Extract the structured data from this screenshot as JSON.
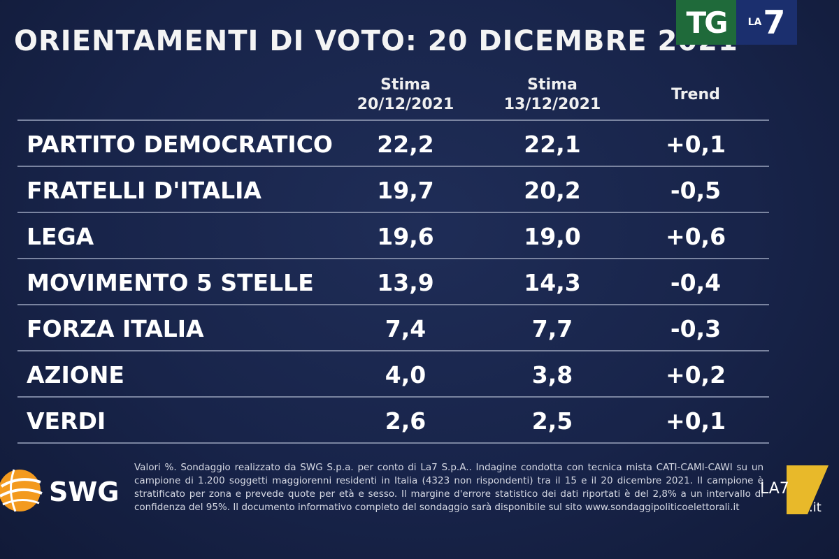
{
  "title": "ORIENTAMENTI DI VOTO: 20 DICEMBRE 2021",
  "logos": {
    "tg": "TG",
    "la": "LA",
    "seven": "7",
    "swg": "SWG",
    "la7_corner": "LA7",
    "la7_corner_suffix": ".it"
  },
  "columns": {
    "c1_line1": "Stima",
    "c1_line2": "20/12/2021",
    "c2_line1": "Stima",
    "c2_line2": "13/12/2021",
    "c3": "Trend"
  },
  "chart_data": {
    "type": "table",
    "title": "ORIENTAMENTI DI VOTO: 20 DICEMBRE 2021",
    "columns": [
      "Stima 20/12/2021",
      "Stima 13/12/2021",
      "Trend"
    ],
    "rows": [
      {
        "party": "PARTITO DEMOCRATICO",
        "stima_20": "22,2",
        "stima_13": "22,1",
        "trend": "+0,1"
      },
      {
        "party": "FRATELLI D'ITALIA",
        "stima_20": "19,7",
        "stima_13": "20,2",
        "trend": "-0,5"
      },
      {
        "party": "LEGA",
        "stima_20": "19,6",
        "stima_13": "19,0",
        "trend": "+0,6"
      },
      {
        "party": "MOVIMENTO 5 STELLE",
        "stima_20": "13,9",
        "stima_13": "14,3",
        "trend": "-0,4"
      },
      {
        "party": "FORZA ITALIA",
        "stima_20": "7,4",
        "stima_13": "7,7",
        "trend": "-0,3"
      },
      {
        "party": "AZIONE",
        "stima_20": "4,0",
        "stima_13": "3,8",
        "trend": "+0,2"
      },
      {
        "party": "VERDI",
        "stima_20": "2,6",
        "stima_13": "2,5",
        "trend": "+0,1"
      }
    ]
  },
  "footnote": "Valori %. Sondaggio realizzato da SWG S.p.a. per conto di La7 S.p.A.. Indagine condotta con tecnica mista CATI-CAMI-CAWI su un campione di 1.200 soggetti maggiorenni residenti in Italia (4323 non rispondenti) tra il 15 e il 20 dicembre 2021. Il campione è stratificato per zona e prevede quote per età e sesso. Il margine d'errore statistico dei dati riportati è del 2,8% a un intervallo di confidenza del 95%. Il documento informativo completo del sondaggio sarà disponibile sul sito www.sondaggipoliticoelettorali.it",
  "colors": {
    "background": "#18244a",
    "rule": "#7a84a0",
    "tg_green": "#1f6a3a",
    "la7_blue": "#1b2f6e",
    "swg_orange": "#f39a1e",
    "la7_yellow": "#e8b92a"
  }
}
